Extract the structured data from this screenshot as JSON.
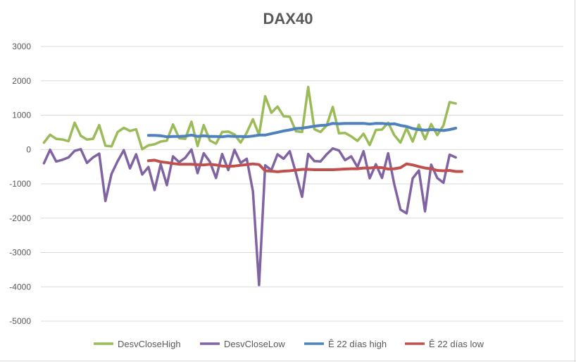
{
  "chart_data": {
    "type": "line",
    "title": "DAX40",
    "xlabel": "",
    "ylabel": "",
    "ylim": [
      -5000,
      3000
    ],
    "yticks": [
      3000,
      2000,
      1000,
      0,
      -1000,
      -2000,
      -3000,
      -4000,
      -5000
    ],
    "ytick_labels": [
      "3000",
      "2000",
      "1000",
      "0",
      "-1000",
      "-2000",
      "-3000",
      "-4000",
      "-5000"
    ],
    "grid": true,
    "legend_position": "bottom",
    "x_count": 85,
    "series": [
      {
        "name": "DesvCloseHigh",
        "color": "#9bbb59",
        "start_index": 0,
        "values": [
          200,
          430,
          310,
          290,
          240,
          780,
          400,
          290,
          310,
          710,
          110,
          90,
          510,
          630,
          540,
          590,
          10,
          120,
          150,
          230,
          260,
          730,
          330,
          310,
          810,
          100,
          710,
          260,
          170,
          510,
          520,
          440,
          200,
          490,
          880,
          420,
          1550,
          1070,
          1250,
          970,
          950,
          530,
          510,
          1820,
          590,
          510,
          700,
          1240,
          470,
          480,
          380,
          250,
          460,
          130,
          570,
          580,
          780,
          420,
          200,
          620,
          230,
          720,
          300,
          740,
          420,
          700,
          1380,
          1340
        ]
      },
      {
        "name": "DesvCloseLow",
        "color": "#8064a2",
        "start_index": 0,
        "values": [
          -400,
          -10,
          -350,
          -300,
          -230,
          -40,
          10,
          -390,
          -230,
          -120,
          -1500,
          -710,
          -340,
          -20,
          -550,
          -140,
          -730,
          -510,
          -1180,
          -430,
          -1040,
          -200,
          -370,
          -240,
          0,
          -690,
          -110,
          -360,
          -830,
          -130,
          -600,
          -10,
          -390,
          -270,
          -1220,
          -3950,
          -460,
          -600,
          -140,
          -270,
          -50,
          -690,
          -1380,
          -130,
          -340,
          -350,
          -140,
          30,
          -30,
          -310,
          -200,
          -510,
          -50,
          -840,
          -430,
          -830,
          -110,
          -1010,
          -1750,
          -1860,
          -840,
          -610,
          -1800,
          -440,
          -830,
          -970,
          -150,
          -230
        ]
      },
      {
        "name": "Ê 22 días high",
        "color": "#4f81bd",
        "start_index": 17,
        "values": [
          410,
          410,
          400,
          370,
          380,
          380,
          390,
          420,
          380,
          400,
          380,
          380,
          370,
          390,
          380,
          380,
          370,
          390,
          420,
          420,
          460,
          500,
          540,
          570,
          610,
          620,
          650,
          680,
          700,
          710,
          760,
          750,
          760,
          760,
          760,
          760,
          740,
          760,
          760,
          740,
          750,
          700,
          670,
          610,
          580,
          560,
          580,
          570,
          550,
          580,
          620
        ]
      },
      {
        "name": "Ê 22 días low",
        "color": "#c0504d",
        "start_index": 17,
        "values": [
          -330,
          -310,
          -360,
          -380,
          -410,
          -430,
          -430,
          -430,
          -440,
          -450,
          -430,
          -450,
          -480,
          -490,
          -480,
          -460,
          -440,
          -420,
          -440,
          -620,
          -630,
          -650,
          -630,
          -620,
          -600,
          -580,
          -580,
          -590,
          -590,
          -590,
          -590,
          -580,
          -570,
          -560,
          -560,
          -540,
          -540,
          -520,
          -530,
          -570,
          -560,
          -530,
          -420,
          -450,
          -500,
          -540,
          -560,
          -610,
          -620,
          -610,
          -640,
          -640
        ]
      }
    ]
  }
}
